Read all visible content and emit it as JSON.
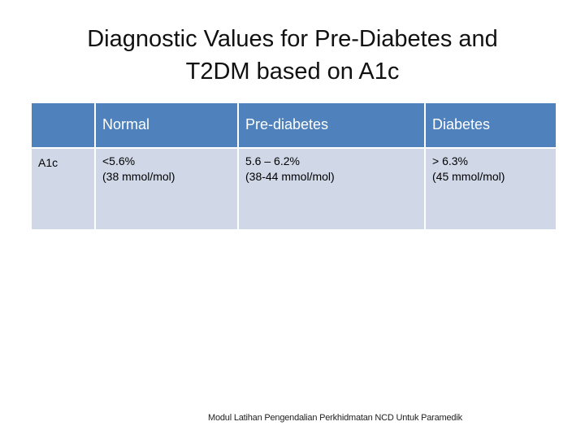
{
  "title": {
    "line1": "Diagnostic Values for Pre-Diabetes and",
    "line2": "T2DM based on A1c"
  },
  "table": {
    "headers": [
      "",
      "Normal",
      "Pre-diabetes",
      "Diabetes"
    ],
    "rows": [
      {
        "label": "A1c",
        "cells": [
          {
            "value": "<5.6%",
            "sub": "(38 mmol/mol)"
          },
          {
            "value": "5.6 – 6.2%",
            "sub": "(38-44 mmol/mol)"
          },
          {
            "value": "> 6.3%",
            "sub": "(45 mmol/mol)"
          }
        ]
      }
    ]
  },
  "footer": {
    "note": "Modul Latihan Pengendalian Perkhidmatan NCD Untuk Paramedik"
  },
  "colors": {
    "header_bg": "#4f81bd",
    "row_bg": "#d0d8e8"
  }
}
